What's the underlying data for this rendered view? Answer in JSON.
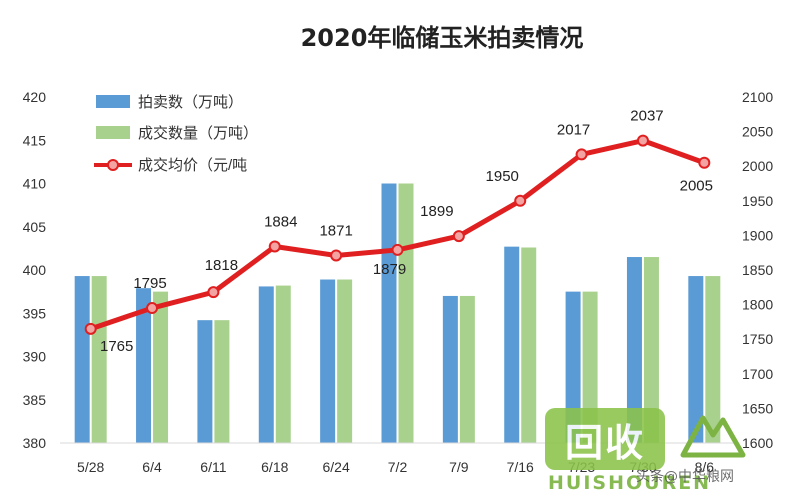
{
  "chart_data": {
    "type": "bar",
    "title": "2020年临储玉米拍卖情况",
    "categories": [
      "5/28",
      "6/4",
      "6/11",
      "6/18",
      "6/24",
      "7/2",
      "7/9",
      "7/16",
      "7/23",
      "7/30",
      "8/6"
    ],
    "series": [
      {
        "name": "拍卖数（万吨）",
        "type": "bar",
        "axis": "left",
        "color": "#5b9bd5",
        "values": [
          399.3,
          397.9,
          394.2,
          398.1,
          398.9,
          410.0,
          397.0,
          402.7,
          397.5,
          401.5,
          399.3
        ]
      },
      {
        "name": "成交数量（万吨）",
        "type": "bar",
        "axis": "left",
        "color": "#a9d18e",
        "values": [
          399.3,
          397.5,
          394.2,
          398.2,
          398.9,
          410.0,
          397.0,
          402.6,
          397.5,
          401.5,
          399.3
        ]
      },
      {
        "name": "成交均价（元/吨",
        "type": "line",
        "axis": "right",
        "color": "#e02020",
        "values": [
          1765,
          1795,
          1818,
          1884,
          1871,
          1879,
          1899,
          1950,
          2017,
          2037,
          2005
        ]
      }
    ],
    "left_axis": {
      "ylim": [
        380,
        420
      ],
      "ticks": [
        380,
        385,
        390,
        395,
        400,
        405,
        410,
        415,
        420
      ]
    },
    "right_axis": {
      "ylim": [
        1600,
        2100
      ],
      "ticks": [
        1600,
        1650,
        1700,
        1750,
        1800,
        1850,
        1900,
        1950,
        2000,
        2050,
        2100
      ]
    },
    "xlabel": "",
    "ylabel": "",
    "grid": false,
    "legend_position": "top-left"
  },
  "watermark": {
    "box_text": "回收",
    "brand_text": "HUISHOUREN",
    "caption_text": "头条@中华粮网"
  },
  "colors": {
    "bar_blue": "#5b9bd5",
    "bar_green": "#a9d18e",
    "line_red": "#e02020",
    "marker_fill": "#f4a3a3",
    "axis_line": "#d9d9d9",
    "text": "#333333"
  }
}
